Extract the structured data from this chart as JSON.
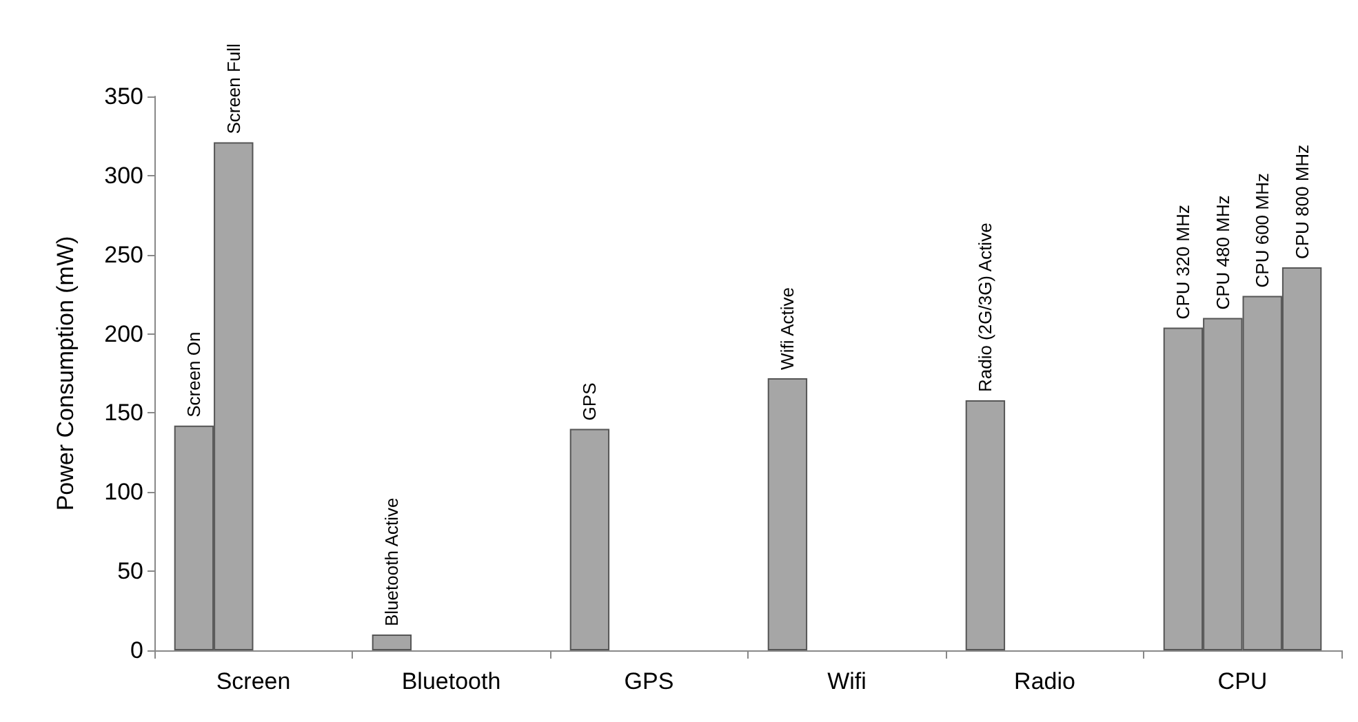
{
  "chart_data": {
    "type": "bar",
    "ylabel": "Power Consumption (mW)",
    "categories": [
      "Screen",
      "Bluetooth",
      "GPS",
      "Wifi",
      "Radio",
      "CPU"
    ],
    "series": [
      {
        "color": "#a6a6a6",
        "values": [
          142,
          10,
          140,
          172,
          158,
          204
        ],
        "value_labels": [
          "Screen On",
          "Bluetooth Active",
          "GPS",
          "Wifi Active",
          "Radio (2G/3G) Active",
          "CPU 320 MHz"
        ]
      },
      {
        "color": "#a6a6a6",
        "values": [
          321,
          null,
          null,
          null,
          null,
          210
        ],
        "value_labels": [
          "Screen Full",
          null,
          null,
          null,
          null,
          "CPU 480 MHz"
        ]
      },
      {
        "color": "#a6a6a6",
        "values": [
          null,
          null,
          null,
          null,
          null,
          224
        ],
        "value_labels": [
          null,
          null,
          null,
          null,
          null,
          "CPU 600 MHz"
        ]
      },
      {
        "color": "#a6a6a6",
        "values": [
          null,
          null,
          null,
          null,
          null,
          242
        ],
        "value_labels": [
          null,
          null,
          null,
          null,
          null,
          "CPU 800 MHz"
        ]
      }
    ],
    "ylim": [
      0,
      350
    ],
    "yticks": [
      0,
      50,
      100,
      150,
      200,
      250,
      300,
      350
    ],
    "grid": false
  }
}
